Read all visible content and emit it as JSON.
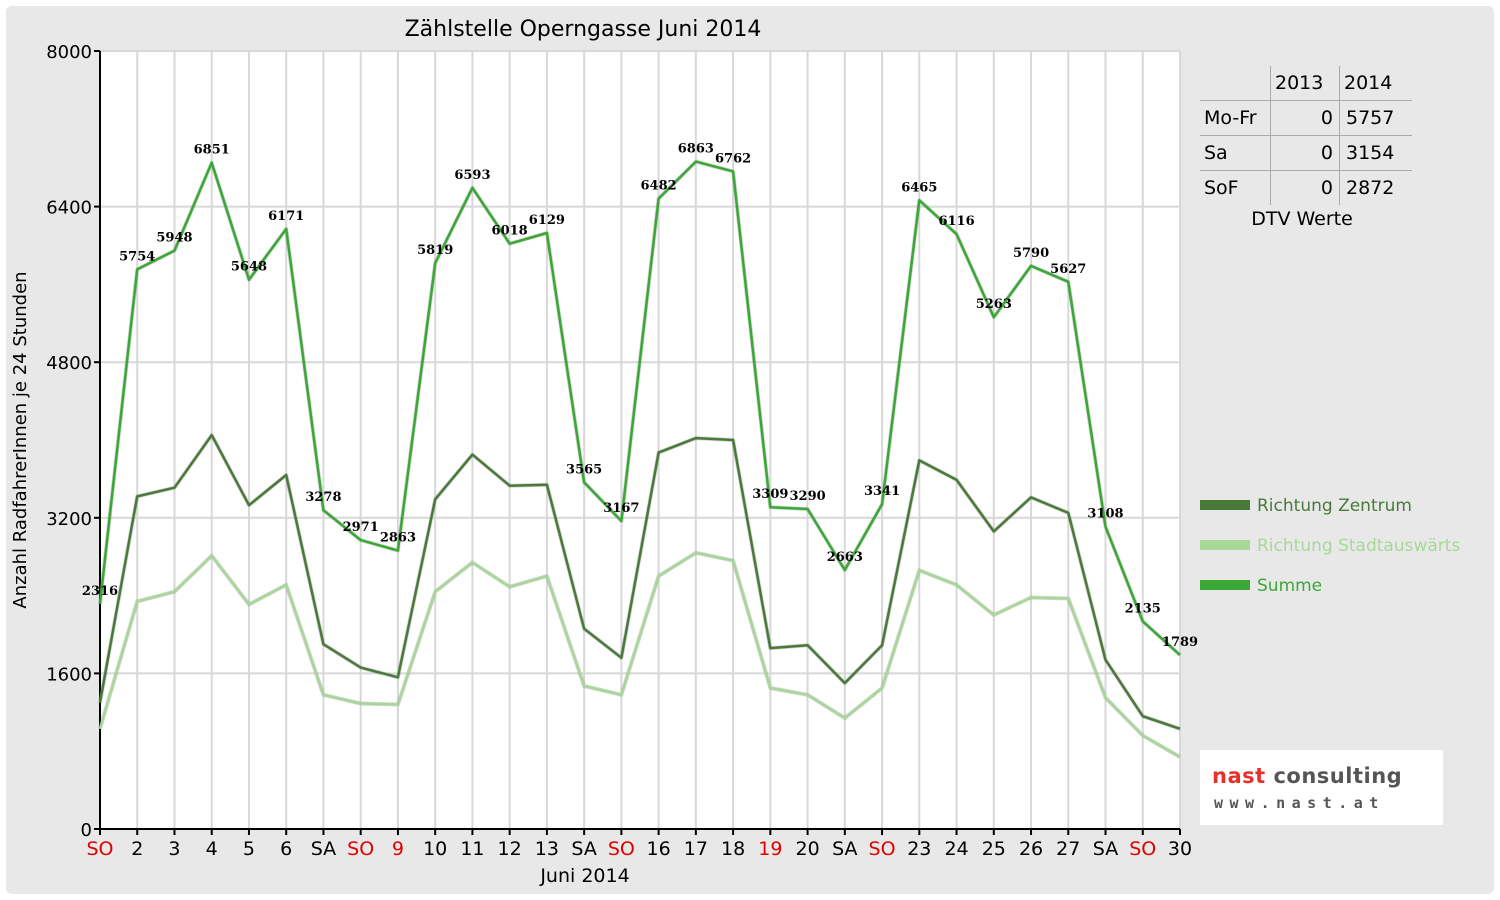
{
  "chart_data": {
    "type": "line",
    "title": "Zählstelle Operngasse Juni 2014",
    "xlabel": "Juni 2014",
    "ylabel": "Anzahl RadfahrerInnen je 24 Stunden",
    "ylim": [
      0,
      8000
    ],
    "yticks": [
      "0",
      "1600",
      "3200",
      "4800",
      "6400",
      "8000"
    ],
    "ytick_values": [
      0,
      1600,
      3200,
      4800,
      6400,
      8000
    ],
    "grid": true,
    "categories": [
      "SO",
      "2",
      "3",
      "4",
      "5",
      "6",
      "SA",
      "SO",
      "9",
      "10",
      "11",
      "12",
      "13",
      "SA",
      "SO",
      "16",
      "17",
      "18",
      "19",
      "20",
      "SA",
      "SO",
      "23",
      "24",
      "25",
      "26",
      "27",
      "SA",
      "SO",
      "30"
    ],
    "category_red": [
      true,
      false,
      false,
      false,
      false,
      false,
      false,
      true,
      true,
      false,
      false,
      false,
      false,
      false,
      true,
      false,
      false,
      false,
      true,
      false,
      false,
      true,
      false,
      false,
      false,
      false,
      false,
      false,
      true,
      false
    ],
    "series": [
      {
        "name": "Richtung Zentrum",
        "color": "#4a7a3a",
        "values": [
          1300,
          3420,
          3510,
          4050,
          3330,
          3640,
          1900,
          1660,
          1560,
          3390,
          3850,
          3530,
          3540,
          2060,
          1760,
          3870,
          4020,
          4000,
          1860,
          1890,
          1500,
          1890,
          3790,
          3590,
          3060,
          3410,
          3250,
          1740,
          1160,
          1030
        ]
      },
      {
        "name": "Richtung Stadtauswärts",
        "color": "#a8d898",
        "values": [
          1030,
          2340,
          2440,
          2810,
          2310,
          2510,
          1380,
          1290,
          1280,
          2440,
          2740,
          2490,
          2600,
          1470,
          1380,
          2600,
          2840,
          2760,
          1450,
          1380,
          1140,
          1450,
          2660,
          2510,
          2200,
          2380,
          2370,
          1350,
          960,
          740
        ]
      },
      {
        "name": "Summe",
        "color": "#3aa835",
        "values": [
          2316,
          5754,
          5948,
          6851,
          5648,
          6171,
          3278,
          2971,
          2863,
          5819,
          6593,
          6018,
          6129,
          3565,
          3167,
          6482,
          6863,
          6762,
          3309,
          3290,
          2663,
          3341,
          6465,
          6116,
          5263,
          5790,
          5627,
          3108,
          2135,
          1789
        ]
      }
    ],
    "data_labels_series": "Summe"
  },
  "dtv": {
    "headers": [
      "2013",
      "2014"
    ],
    "rows": [
      {
        "label": "Mo-Fr",
        "v2013": "0",
        "v2014": "5757"
      },
      {
        "label": "Sa",
        "v2013": "0",
        "v2014": "3154"
      },
      {
        "label": "SoF",
        "v2013": "0",
        "v2014": "2872"
      }
    ],
    "caption": "DTV Werte"
  },
  "logo": {
    "name_part1": "nast",
    "name_part2": " consulting",
    "url": "www.nast.at"
  }
}
